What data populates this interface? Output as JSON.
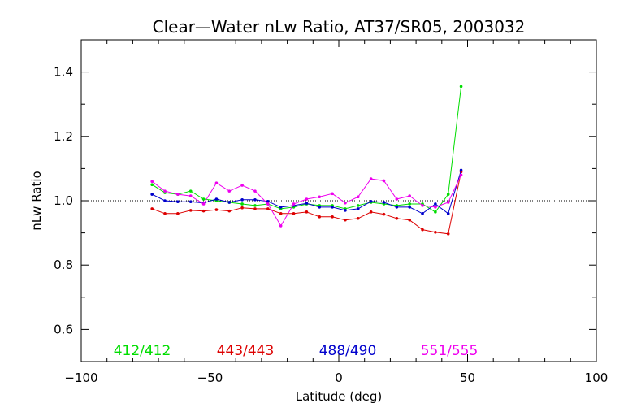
{
  "chart_data": {
    "type": "line",
    "title": "Clear—Water nLw Ratio, AT37/SR05, 2003032",
    "xlabel": "Latitude (deg)",
    "ylabel": "nLw Ratio",
    "xlim": [
      -100,
      100
    ],
    "ylim": [
      0.5,
      1.5
    ],
    "xticks": [
      -100,
      -50,
      0,
      50,
      100
    ],
    "xtick_labels": [
      "−100",
      "−50",
      "0",
      "50",
      "100"
    ],
    "yticks": [
      0.6,
      0.8,
      1.0,
      1.2,
      1.4
    ],
    "ytick_labels": [
      "0.6",
      "0.8",
      "1.0",
      "1.2",
      "1.4"
    ],
    "reference_line": 1.0,
    "grid": false,
    "legend_placement": "bottom inside",
    "x": [
      -72.5,
      -67.5,
      -62.5,
      -57.5,
      -52.5,
      -47.5,
      -42.5,
      -37.5,
      -32.5,
      -27.5,
      -22.5,
      -17.5,
      -12.5,
      -7.5,
      -2.5,
      2.5,
      7.5,
      12.5,
      17.5,
      22.5,
      27.5,
      32.5,
      37.5,
      42.5,
      47.5
    ],
    "series": [
      {
        "name": "412/412",
        "color": "#00dd00",
        "values": [
          1.05,
          1.025,
          1.02,
          1.03,
          1.005,
          1.0,
          0.995,
          0.99,
          0.985,
          0.99,
          0.975,
          0.98,
          0.99,
          0.985,
          0.985,
          0.975,
          0.985,
          0.995,
          0.99,
          0.985,
          0.99,
          0.99,
          0.965,
          1.02,
          1.355
        ]
      },
      {
        "name": "443/443",
        "color": "#dd0000",
        "values": [
          0.975,
          0.96,
          0.96,
          0.97,
          0.968,
          0.972,
          0.968,
          0.978,
          0.975,
          0.975,
          0.96,
          0.96,
          0.965,
          0.95,
          0.95,
          0.94,
          0.945,
          0.965,
          0.958,
          0.945,
          0.94,
          0.91,
          0.902,
          0.897,
          1.09
        ]
      },
      {
        "name": "488/490",
        "color": "#0000cc",
        "values": [
          1.02,
          1.0,
          0.997,
          0.997,
          0.993,
          1.005,
          0.995,
          1.003,
          1.003,
          0.998,
          0.98,
          0.985,
          0.992,
          0.98,
          0.98,
          0.97,
          0.975,
          0.998,
          0.995,
          0.98,
          0.98,
          0.96,
          0.99,
          0.96,
          1.095
        ]
      },
      {
        "name": "551/555",
        "color": "#ee00ee",
        "values": [
          1.06,
          1.03,
          1.02,
          1.015,
          0.99,
          1.055,
          1.03,
          1.048,
          1.03,
          0.99,
          0.922,
          0.99,
          1.005,
          1.012,
          1.022,
          0.993,
          1.012,
          1.068,
          1.062,
          1.005,
          1.015,
          0.985,
          0.98,
          0.995,
          1.08
        ]
      }
    ]
  }
}
